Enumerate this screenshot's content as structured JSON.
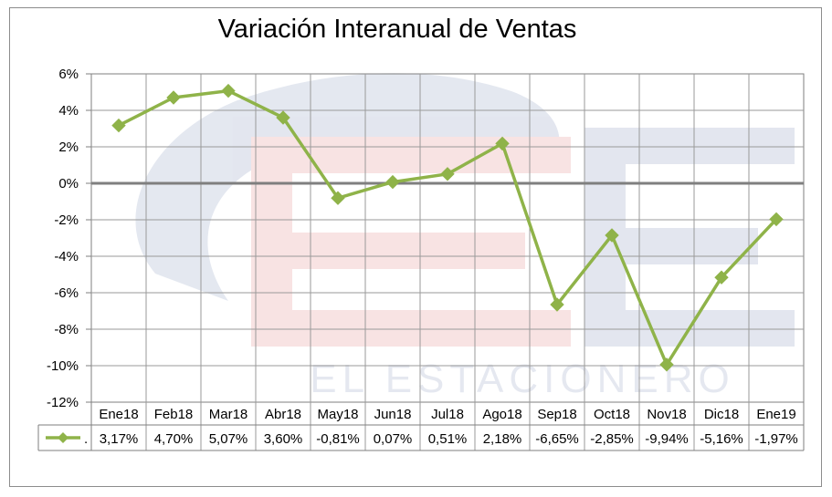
{
  "chart_data": {
    "type": "line",
    "title": "Variación Interanual de Ventas",
    "categories": [
      "Ene18",
      "Feb18",
      "Mar18",
      "Abr18",
      "May18",
      "Jun18",
      "Jul18",
      "Ago18",
      "Sep18",
      "Oct18",
      "Nov18",
      "Dic18",
      "Ene19"
    ],
    "series": [
      {
        "name": ".",
        "values": [
          3.17,
          4.7,
          5.07,
          3.6,
          -0.81,
          0.07,
          0.51,
          2.18,
          -6.65,
          -2.85,
          -9.94,
          -5.16,
          -1.97
        ],
        "value_labels": [
          "3,17%",
          "4,70%",
          "5,07%",
          "3,60%",
          "-0,81%",
          "0,07%",
          "0,51%",
          "2,18%",
          "-6,65%",
          "-2,85%",
          "-9,94%",
          "-5,16%",
          "-1,97%"
        ],
        "color": "#8fb349",
        "marker": "diamond"
      }
    ],
    "ylim": [
      -12,
      6
    ],
    "y_ticks": [
      6,
      4,
      2,
      0,
      -2,
      -4,
      -6,
      -8,
      -10,
      -12
    ],
    "y_tick_labels": [
      "6%",
      "4%",
      "2%",
      "0%",
      "-2%",
      "-4%",
      "-6%",
      "-8%",
      "-10%",
      "-12%"
    ],
    "grid": true,
    "legend": "data-table",
    "zero_line_color": "#7f7f7f",
    "watermark_text": "EL ESTACIONERO"
  }
}
